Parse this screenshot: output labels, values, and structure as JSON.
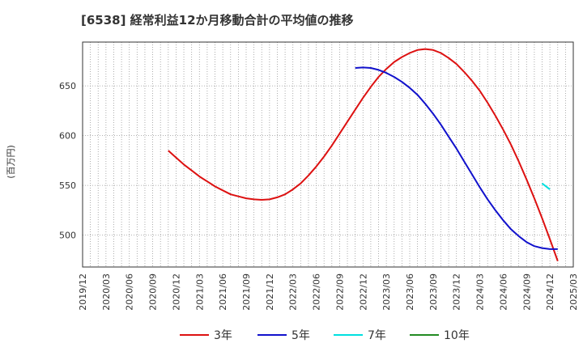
{
  "chart_data": {
    "type": "line",
    "title": "[6538]  経常利益12か月移動合計の平均値の推移",
    "ylabel": "(百万円)",
    "xlabel": "",
    "ylim": [
      468,
      694
    ],
    "xlim": [
      "2019/12",
      "2025/03"
    ],
    "yticks": [
      500,
      550,
      600,
      650
    ],
    "xticks": [
      "2019/12",
      "2020/03",
      "2020/06",
      "2020/09",
      "2020/12",
      "2021/03",
      "2021/06",
      "2021/09",
      "2021/12",
      "2022/03",
      "2022/06",
      "2022/09",
      "2022/12",
      "2023/03",
      "2023/06",
      "2023/09",
      "2023/12",
      "2024/03",
      "2024/06",
      "2024/09",
      "2024/12",
      "2025/03"
    ],
    "grid": true,
    "legend_position": "bottom",
    "series": [
      {
        "name": "3年",
        "color": "#dd1111",
        "points": [
          [
            "2020/11",
            585
          ],
          [
            "2020/12",
            578
          ],
          [
            "2021/01",
            571
          ],
          [
            "2021/02",
            565
          ],
          [
            "2021/03",
            559
          ],
          [
            "2021/04",
            554
          ],
          [
            "2021/05",
            549
          ],
          [
            "2021/06",
            545
          ],
          [
            "2021/07",
            541
          ],
          [
            "2021/08",
            539
          ],
          [
            "2021/09",
            537
          ],
          [
            "2021/10",
            536
          ],
          [
            "2021/11",
            535.5
          ],
          [
            "2021/12",
            536
          ],
          [
            "2022/01",
            538
          ],
          [
            "2022/02",
            541
          ],
          [
            "2022/03",
            546
          ],
          [
            "2022/04",
            552
          ],
          [
            "2022/05",
            560
          ],
          [
            "2022/06",
            569
          ],
          [
            "2022/07",
            579
          ],
          [
            "2022/08",
            590
          ],
          [
            "2022/09",
            602
          ],
          [
            "2022/10",
            614
          ],
          [
            "2022/11",
            626
          ],
          [
            "2022/12",
            638
          ],
          [
            "2023/01",
            649
          ],
          [
            "2023/02",
            659
          ],
          [
            "2023/03",
            667
          ],
          [
            "2023/04",
            674
          ],
          [
            "2023/05",
            679
          ],
          [
            "2023/06",
            683
          ],
          [
            "2023/07",
            686
          ],
          [
            "2023/08",
            687
          ],
          [
            "2023/09",
            686
          ],
          [
            "2023/10",
            683
          ],
          [
            "2023/11",
            678
          ],
          [
            "2023/12",
            672
          ],
          [
            "2024/01",
            664
          ],
          [
            "2024/02",
            655
          ],
          [
            "2024/03",
            645
          ],
          [
            "2024/04",
            633
          ],
          [
            "2024/05",
            620
          ],
          [
            "2024/06",
            606
          ],
          [
            "2024/07",
            591
          ],
          [
            "2024/08",
            574
          ],
          [
            "2024/09",
            556
          ],
          [
            "2024/10",
            537
          ],
          [
            "2024/11",
            517
          ],
          [
            "2024/12",
            496
          ],
          [
            "2025/01",
            474
          ]
        ]
      },
      {
        "name": "5年",
        "color": "#1111cc",
        "points": [
          [
            "2022/11",
            668
          ],
          [
            "2022/12",
            668.5
          ],
          [
            "2023/01",
            668
          ],
          [
            "2023/02",
            666
          ],
          [
            "2023/03",
            663
          ],
          [
            "2023/04",
            659
          ],
          [
            "2023/05",
            654
          ],
          [
            "2023/06",
            648
          ],
          [
            "2023/07",
            641
          ],
          [
            "2023/08",
            632
          ],
          [
            "2023/09",
            622
          ],
          [
            "2023/10",
            611
          ],
          [
            "2023/11",
            599
          ],
          [
            "2023/12",
            587
          ],
          [
            "2024/01",
            574
          ],
          [
            "2024/02",
            561
          ],
          [
            "2024/03",
            548
          ],
          [
            "2024/04",
            536
          ],
          [
            "2024/05",
            525
          ],
          [
            "2024/06",
            515
          ],
          [
            "2024/07",
            506
          ],
          [
            "2024/08",
            499
          ],
          [
            "2024/09",
            493
          ],
          [
            "2024/10",
            489
          ],
          [
            "2024/11",
            487
          ],
          [
            "2024/12",
            486
          ],
          [
            "2025/01",
            486
          ]
        ]
      },
      {
        "name": "7年",
        "color": "#00e0e0",
        "points": [
          [
            "2024/11",
            552
          ],
          [
            "2024/12",
            546
          ]
        ]
      },
      {
        "name": "10年",
        "color": "#228b22",
        "points": []
      }
    ]
  }
}
